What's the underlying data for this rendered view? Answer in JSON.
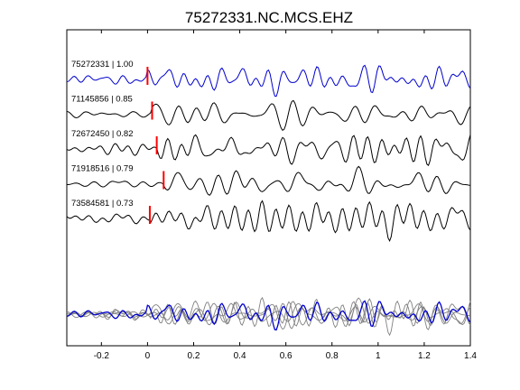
{
  "chart_data": {
    "type": "line",
    "title": "75272331.NC.MCS.EHZ",
    "xlabel": "",
    "ylabel": "",
    "xlim": [
      -0.35,
      1.4
    ],
    "xticks": [
      -0.2,
      0,
      0.2,
      0.4,
      0.6,
      0.8,
      1,
      1.2,
      1.4
    ],
    "xtick_labels": [
      "-0.2",
      "0",
      "0.2",
      "0.4",
      "0.6",
      "0.8",
      "1",
      "1.2",
      "1.4"
    ],
    "grid": false,
    "legend": "none",
    "series": [
      {
        "label": "75272331 | 1.00",
        "event_id": "75272331",
        "correlation": "1.00",
        "pick_time": 0.0,
        "color": "#0000cc",
        "seed": 1
      },
      {
        "label": "71145856 | 0.85",
        "event_id": "71145856",
        "correlation": "0.85",
        "pick_time": 0.02,
        "color": "#000000",
        "seed": 2
      },
      {
        "label": "72672450 | 0.82",
        "event_id": "72672450",
        "correlation": "0.82",
        "pick_time": 0.04,
        "color": "#000000",
        "seed": 3
      },
      {
        "label": "71918516 | 0.79",
        "event_id": "71918516",
        "correlation": "0.79",
        "pick_time": 0.07,
        "color": "#000000",
        "seed": 4
      },
      {
        "label": "73584581 | 0.73",
        "event_id": "73584581",
        "correlation": "0.73",
        "pick_time": 0.01,
        "color": "#000000",
        "seed": 5
      }
    ],
    "overlay": {
      "reference_color": "#0000cc",
      "others_color": "#808080"
    },
    "pick_marker_color": "#ff0000"
  }
}
